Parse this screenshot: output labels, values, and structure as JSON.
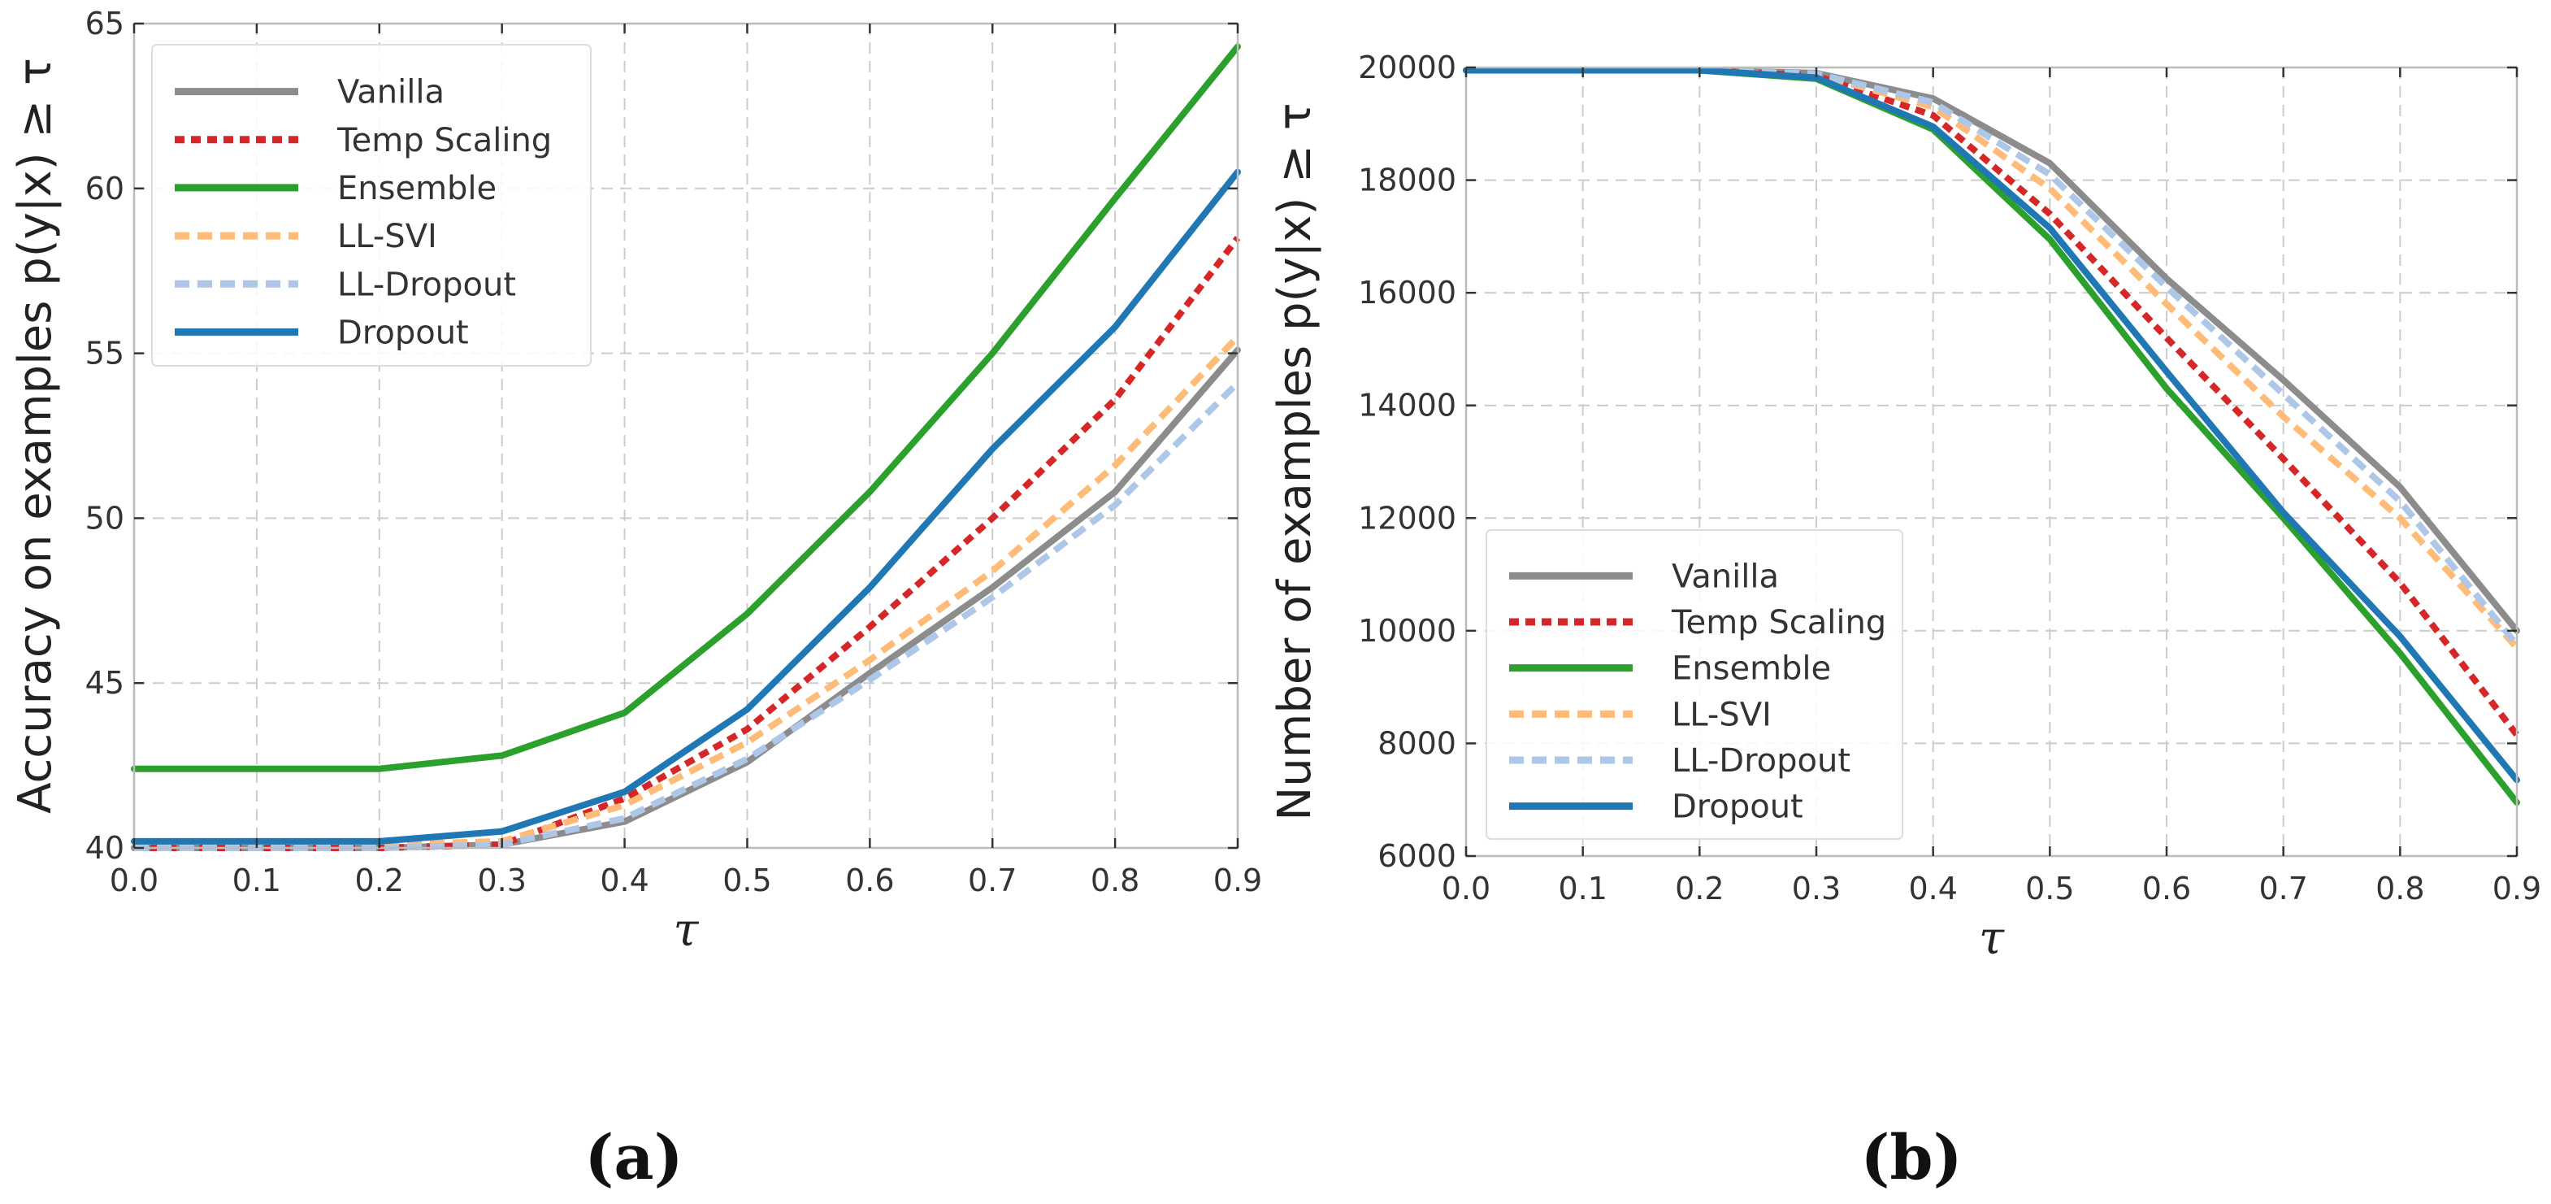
{
  "legend_entries": [
    {
      "name": "Vanilla",
      "color": "#8c8c8c",
      "dash": "solid"
    },
    {
      "name": "Temp Scaling",
      "color": "#d62728",
      "dash": "dot"
    },
    {
      "name": "Ensemble",
      "color": "#2ca02c",
      "dash": "solid"
    },
    {
      "name": "LL-SVI",
      "color": "#ffbb78",
      "dash": "dash"
    },
    {
      "name": "LL-Dropout",
      "color": "#aec7e8",
      "dash": "dash"
    },
    {
      "name": "Dropout",
      "color": "#1f77b4",
      "dash": "solid"
    }
  ],
  "chart_data": [
    {
      "type": "line",
      "caption": "(a)",
      "xlabel": "τ",
      "ylabel": "Accuracy on examples p(y|x) ≥ τ",
      "xlim": [
        0.0,
        0.9
      ],
      "ylim": [
        40,
        65
      ],
      "xticks": [
        "0.0",
        "0.1",
        "0.2",
        "0.3",
        "0.4",
        "0.5",
        "0.6",
        "0.7",
        "0.8",
        "0.9"
      ],
      "yticks": [
        "40",
        "45",
        "50",
        "55",
        "60",
        "65"
      ],
      "grid": true,
      "legend_position": "top-left",
      "x": [
        0.0,
        0.1,
        0.2,
        0.3,
        0.4,
        0.5,
        0.6,
        0.7,
        0.8,
        0.9
      ],
      "series": [
        {
          "name": "Vanilla",
          "values": [
            40.0,
            40.0,
            40.0,
            40.1,
            40.8,
            42.6,
            45.3,
            47.9,
            50.8,
            55.1
          ]
        },
        {
          "name": "Temp Scaling",
          "values": [
            40.0,
            40.0,
            40.0,
            40.1,
            41.5,
            43.6,
            46.7,
            50.0,
            53.6,
            58.5
          ]
        },
        {
          "name": "Ensemble",
          "values": [
            42.4,
            42.4,
            42.4,
            42.8,
            44.1,
            47.1,
            50.8,
            55.0,
            59.7,
            64.3
          ]
        },
        {
          "name": "LL-SVI",
          "values": [
            40.1,
            40.1,
            40.1,
            40.2,
            41.3,
            43.2,
            45.7,
            48.4,
            51.6,
            55.5
          ]
        },
        {
          "name": "LL-Dropout",
          "values": [
            40.0,
            40.0,
            40.0,
            40.1,
            40.9,
            42.7,
            45.1,
            47.6,
            50.4,
            54.1
          ]
        },
        {
          "name": "Dropout",
          "values": [
            40.2,
            40.2,
            40.2,
            40.5,
            41.7,
            44.2,
            47.9,
            52.1,
            55.8,
            60.5
          ]
        }
      ]
    },
    {
      "type": "line",
      "caption": "(b)",
      "xlabel": "τ",
      "ylabel": "Number of examples p(y|x) ≥ τ",
      "xlim": [
        0.0,
        0.9
      ],
      "ylim": [
        6000,
        20000
      ],
      "xticks": [
        "0.0",
        "0.1",
        "0.2",
        "0.3",
        "0.4",
        "0.5",
        "0.6",
        "0.7",
        "0.8",
        "0.9"
      ],
      "yticks": [
        "6000",
        "8000",
        "10000",
        "12000",
        "14000",
        "16000",
        "18000",
        "20000"
      ],
      "grid": true,
      "legend_position": "lower-left",
      "x": [
        0.0,
        0.1,
        0.2,
        0.3,
        0.4,
        0.5,
        0.6,
        0.7,
        0.8,
        0.9
      ],
      "series": [
        {
          "name": "Vanilla",
          "values": [
            19950,
            19950,
            19950,
            19900,
            19450,
            18300,
            16250,
            14450,
            12550,
            10000
          ]
        },
        {
          "name": "Temp Scaling",
          "values": [
            19950,
            19950,
            19950,
            19850,
            19150,
            17400,
            15200,
            13050,
            10850,
            8150
          ]
        },
        {
          "name": "Ensemble",
          "values": [
            19950,
            19950,
            19950,
            19800,
            18900,
            16950,
            14300,
            12000,
            9600,
            6950
          ]
        },
        {
          "name": "LL-SVI",
          "values": [
            19950,
            19950,
            19950,
            19880,
            19300,
            17850,
            15800,
            13800,
            12000,
            9700
          ]
        },
        {
          "name": "LL-Dropout",
          "values": [
            19950,
            19950,
            19950,
            19890,
            19380,
            18100,
            16100,
            14200,
            12300,
            9750
          ]
        },
        {
          "name": "Dropout",
          "values": [
            19950,
            19950,
            19950,
            19820,
            18950,
            17150,
            14600,
            12100,
            9900,
            7350
          ]
        }
      ]
    }
  ]
}
